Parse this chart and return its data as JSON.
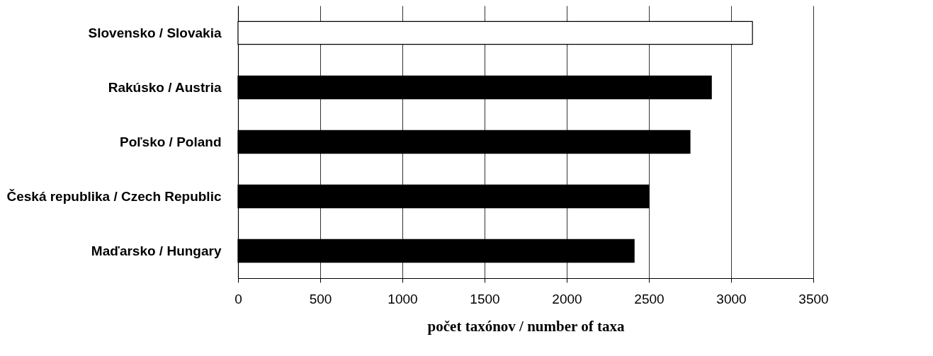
{
  "chart_data": {
    "type": "bar",
    "orientation": "horizontal",
    "categories": [
      "Slovensko / Slovakia",
      "Rakúsko / Austria",
      "Poľsko / Poland",
      "Česká republika / Czech Republic",
      "Maďarsko / Hungary"
    ],
    "values": [
      3130,
      2880,
      2750,
      2500,
      2410
    ],
    "colors": [
      "#ffffff",
      "#000000",
      "#000000",
      "#000000",
      "#000000"
    ],
    "xlabel": "počet taxónov / number of taxa",
    "xlim": [
      0,
      3500
    ],
    "xticks": [
      0,
      500,
      1000,
      1500,
      2000,
      2500,
      3000,
      3500
    ],
    "grid": "x"
  }
}
